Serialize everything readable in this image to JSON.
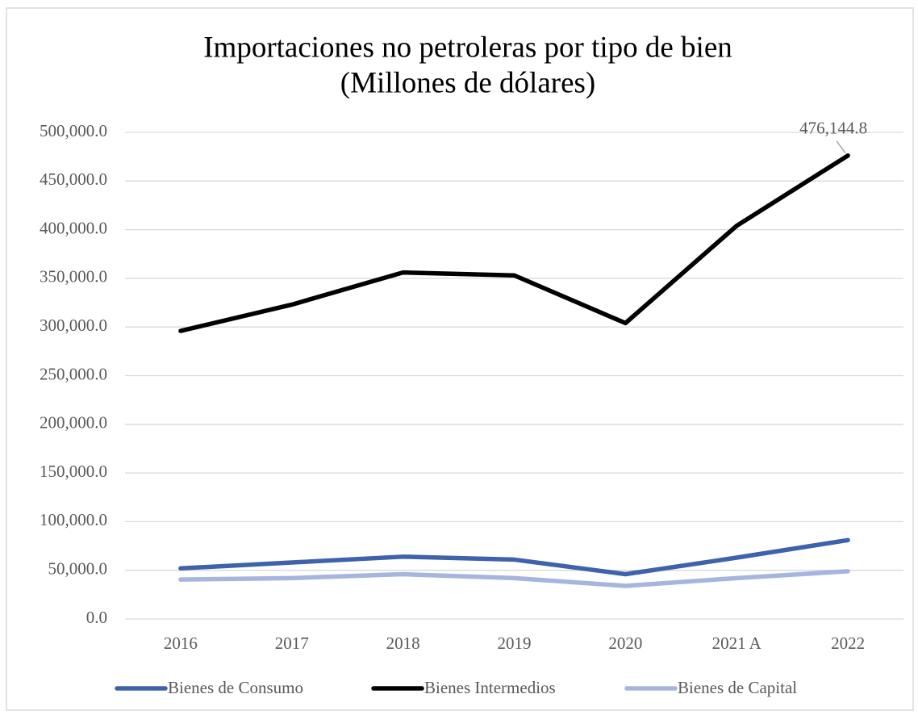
{
  "chart_data": {
    "type": "line",
    "title": "Importaciones no petroleras por tipo de bien",
    "subtitle": "(Millones de dólares)",
    "categories": [
      "2016",
      "2017",
      "2018",
      "2019",
      "2020",
      "2021 A",
      "2022"
    ],
    "series": [
      {
        "name": "Bienes de Consumo",
        "color": "#3f63ab",
        "values": [
          52000,
          58000,
          64000,
          61000,
          46000,
          63000,
          81000
        ]
      },
      {
        "name": "Bienes Intermedios",
        "color": "#000000",
        "values": [
          296000,
          323000,
          356000,
          353000,
          304000,
          404000,
          476144.8
        ],
        "value_labels": [
          null,
          null,
          null,
          null,
          null,
          null,
          "476,144.8"
        ]
      },
      {
        "name": "Bienes de Capital",
        "color": "#a6b5de",
        "values": [
          40500,
          42000,
          46000,
          42000,
          34000,
          42000,
          49000
        ]
      }
    ],
    "ylim": [
      0,
      500000
    ],
    "yticks": [
      {
        "value": 0,
        "label": "0.0"
      },
      {
        "value": 50000,
        "label": "50,000.0"
      },
      {
        "value": 100000,
        "label": "100,000.0"
      },
      {
        "value": 150000,
        "label": "150,000.0"
      },
      {
        "value": 200000,
        "label": "200,000.0"
      },
      {
        "value": 250000,
        "label": "250,000.0"
      },
      {
        "value": 300000,
        "label": "300,000.0"
      },
      {
        "value": 350000,
        "label": "350,000.0"
      },
      {
        "value": 400000,
        "label": "400,000.0"
      },
      {
        "value": 450000,
        "label": "450,000.0"
      },
      {
        "value": 500000,
        "label": "500,000.0"
      }
    ],
    "grid": true,
    "legend": "bottom"
  }
}
